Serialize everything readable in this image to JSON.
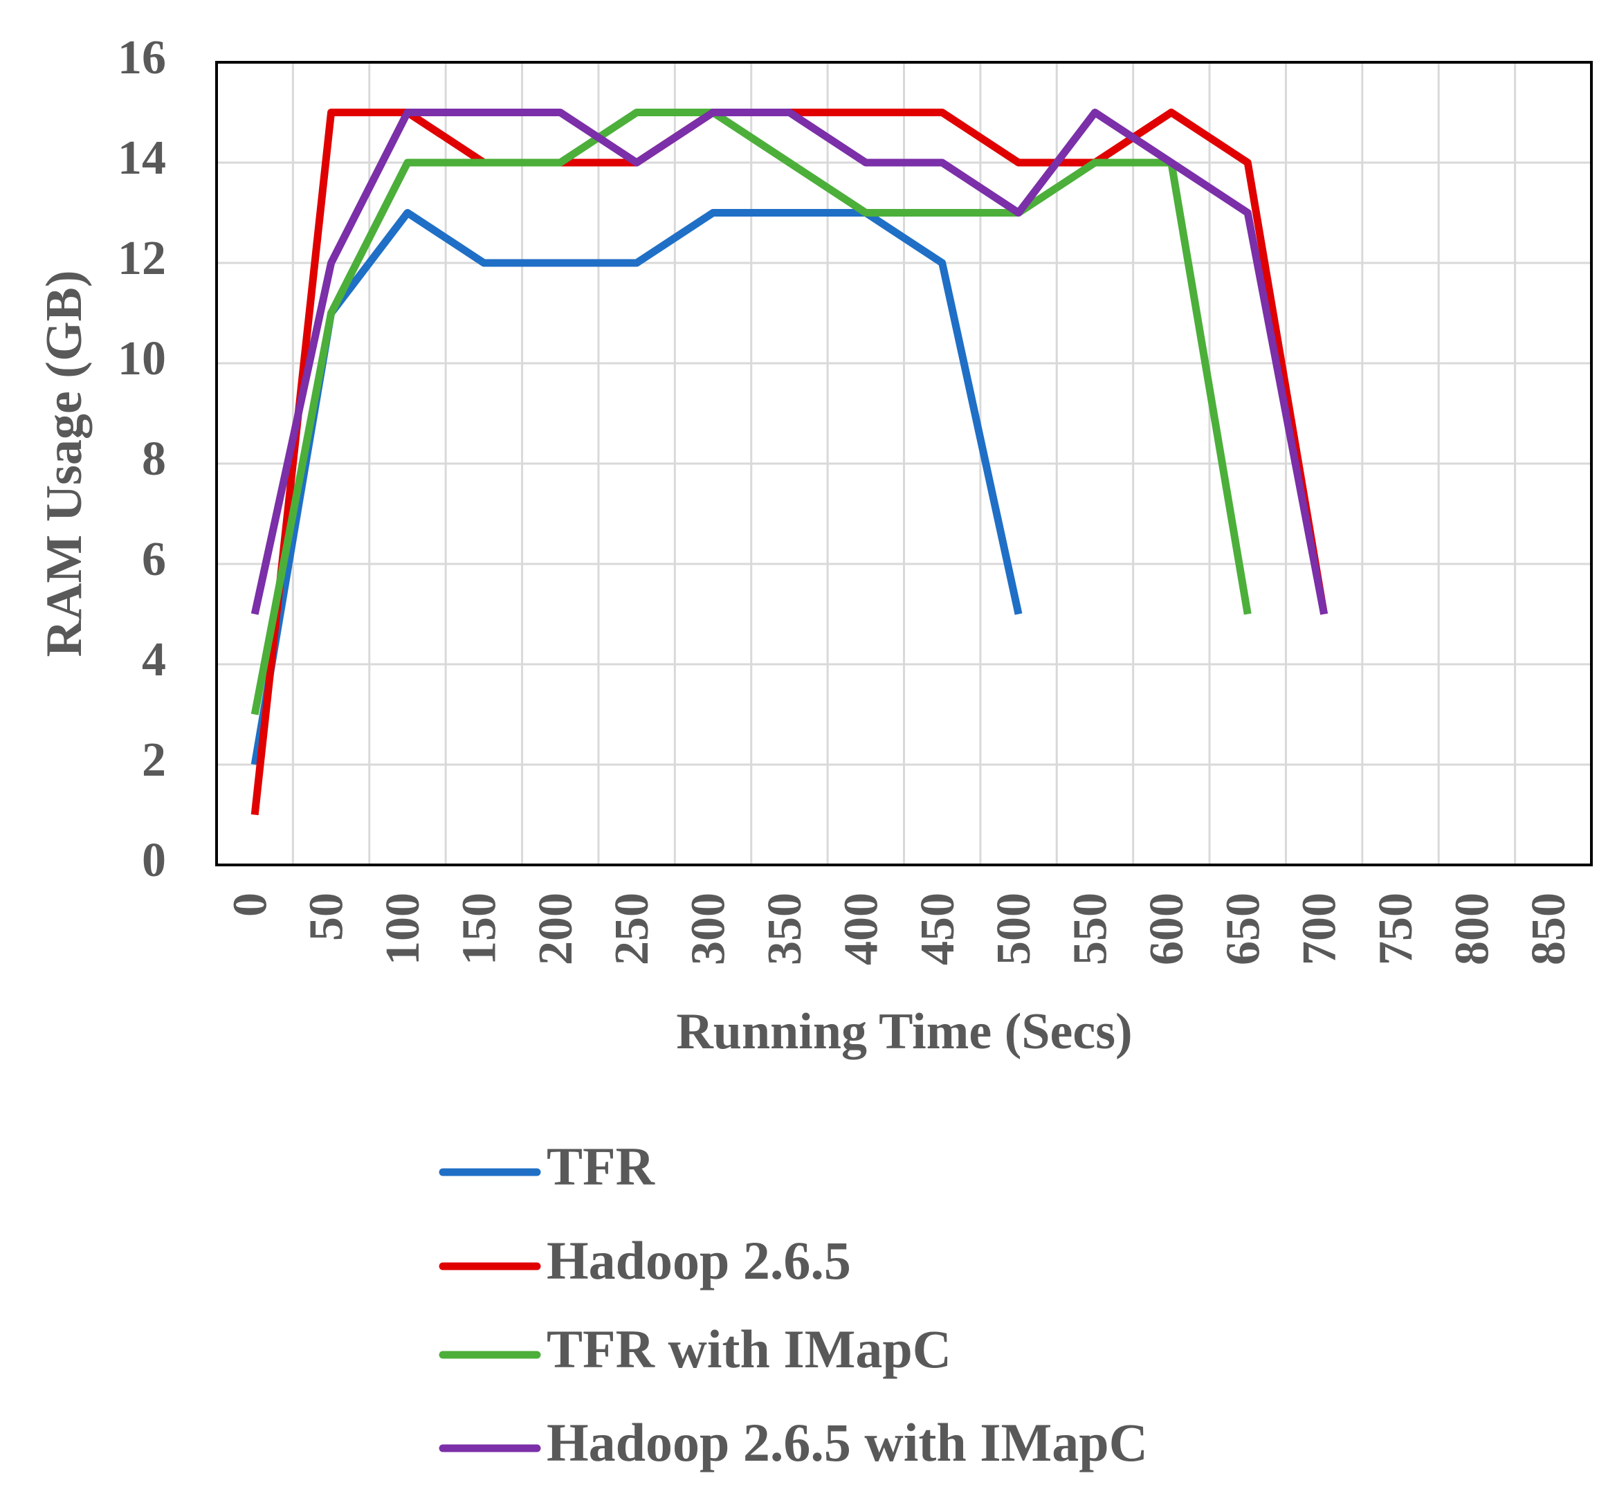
{
  "chart_data": {
    "type": "line",
    "x_label": "Running Time (Secs)",
    "y_label": "RAM Usage (GB)",
    "categories": [
      "0",
      "50",
      "100",
      "150",
      "200",
      "250",
      "300",
      "350",
      "400",
      "450",
      "500",
      "550",
      "600",
      "650",
      "700",
      "750",
      "800",
      "850"
    ],
    "series": [
      {
        "name": "TFR",
        "color": "#1f6fc6",
        "values": [
          2,
          11,
          13,
          12,
          12,
          12,
          13,
          13,
          13,
          12,
          5,
          null,
          null,
          null,
          null,
          null,
          null,
          null
        ]
      },
      {
        "name": "Hadoop 2.6.5",
        "color": "#e00000",
        "values": [
          1,
          15,
          15,
          14,
          14,
          14,
          15,
          15,
          15,
          15,
          14,
          14,
          15,
          14,
          5,
          null,
          null,
          null
        ]
      },
      {
        "name": "TFR with IMapC",
        "color": "#4caf3a",
        "values": [
          3,
          11,
          14,
          14,
          14,
          15,
          15,
          14,
          13,
          13,
          13,
          14,
          14,
          5,
          null,
          null,
          null,
          null
        ]
      },
      {
        "name": "Hadoop 2.6.5 with IMapC",
        "color": "#7b2fa8",
        "values": [
          5,
          12,
          15,
          15,
          15,
          14,
          15,
          15,
          14,
          14,
          13,
          15,
          14,
          13,
          5,
          null,
          null,
          null
        ]
      }
    ],
    "ylim": [
      0,
      16
    ],
    "yticks": [
      0,
      2,
      4,
      6,
      8,
      10,
      12,
      14,
      16
    ],
    "grid": true,
    "legend": "bottom"
  }
}
